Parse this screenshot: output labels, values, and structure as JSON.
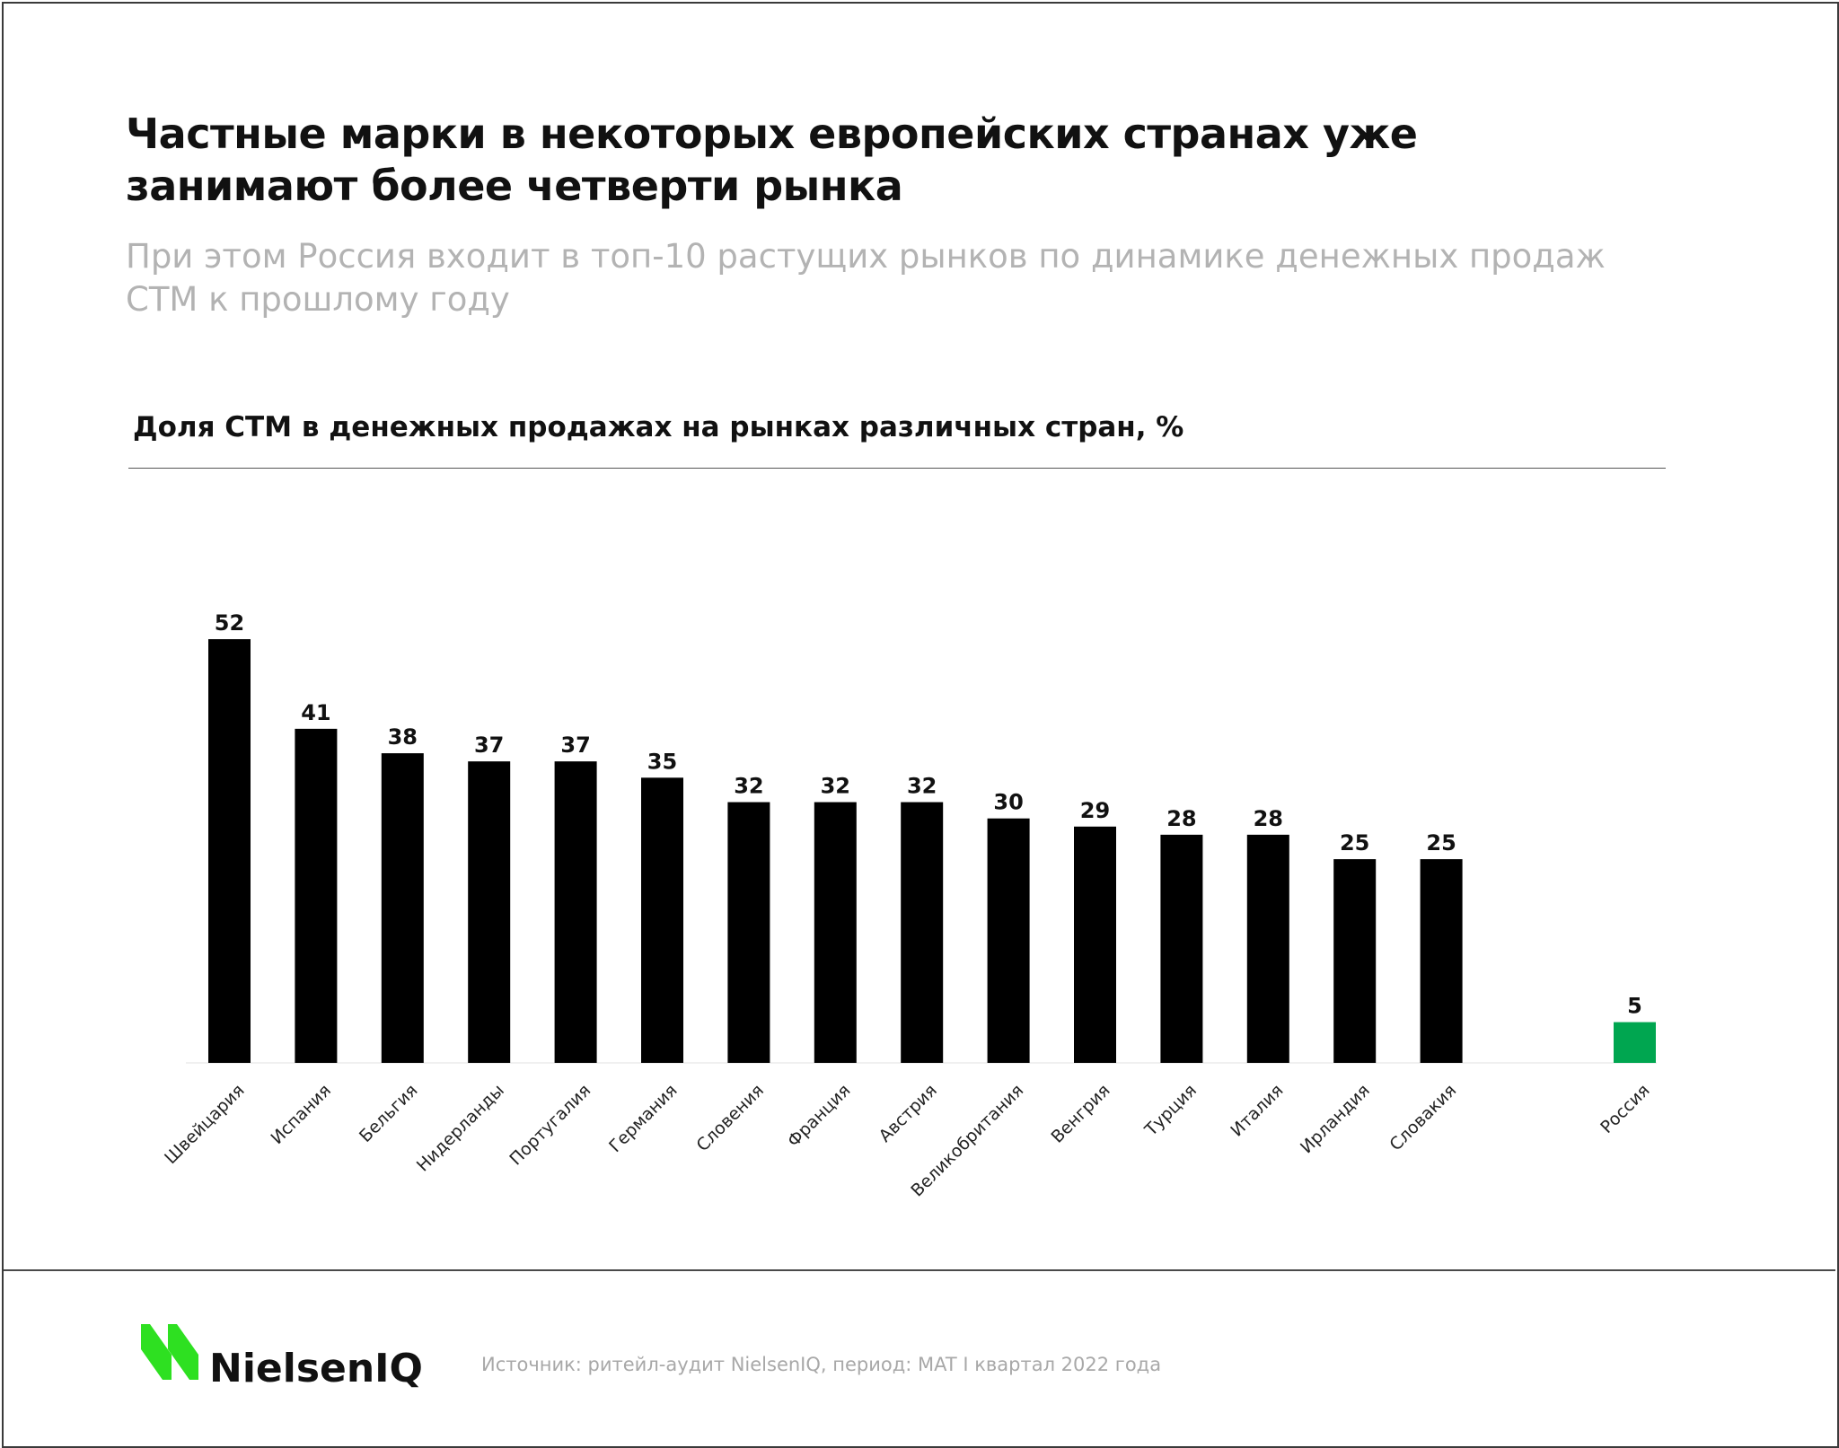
{
  "header": {
    "title": "Частные марки в некоторых европейских странах уже занимают более четверти рынка",
    "subtitle": "При этом Россия входит в топ-10 растущих рынков по динамике денежных продаж СТМ к прошлому году"
  },
  "chart_data": {
    "type": "bar",
    "title": "Доля СТМ в денежных продажах на рынках различных стран, %",
    "xlabel": "",
    "ylabel": "",
    "ylim": [
      0,
      52
    ],
    "grid": false,
    "categories": [
      "Швейцария",
      "Испания",
      "Бельгия",
      "Нидерланды",
      "Португалия",
      "Германия",
      "Словения",
      "Франция",
      "Австрия",
      "Великобритания",
      "Венгрия",
      "Турция",
      "Италия",
      "Ирландия",
      "Словакия",
      "Россия"
    ],
    "values": [
      52,
      41,
      38,
      37,
      37,
      35,
      32,
      32,
      32,
      30,
      29,
      28,
      28,
      25,
      25,
      5
    ],
    "value_labels": [
      "52",
      "41",
      "38",
      "37",
      "37",
      "35",
      "32",
      "32",
      "32",
      "30",
      "29",
      "28",
      "28",
      "25",
      "25",
      "5"
    ],
    "colors": {
      "default": "#000000",
      "highlight": "#00a650",
      "highlight_category": "Россия"
    }
  },
  "footer": {
    "logo_text": "NielsenIQ",
    "logo_color": "#2ee021",
    "source": "Источник: ритейл-аудит NielsenIQ, период: MAT I квартал 2022 года"
  }
}
